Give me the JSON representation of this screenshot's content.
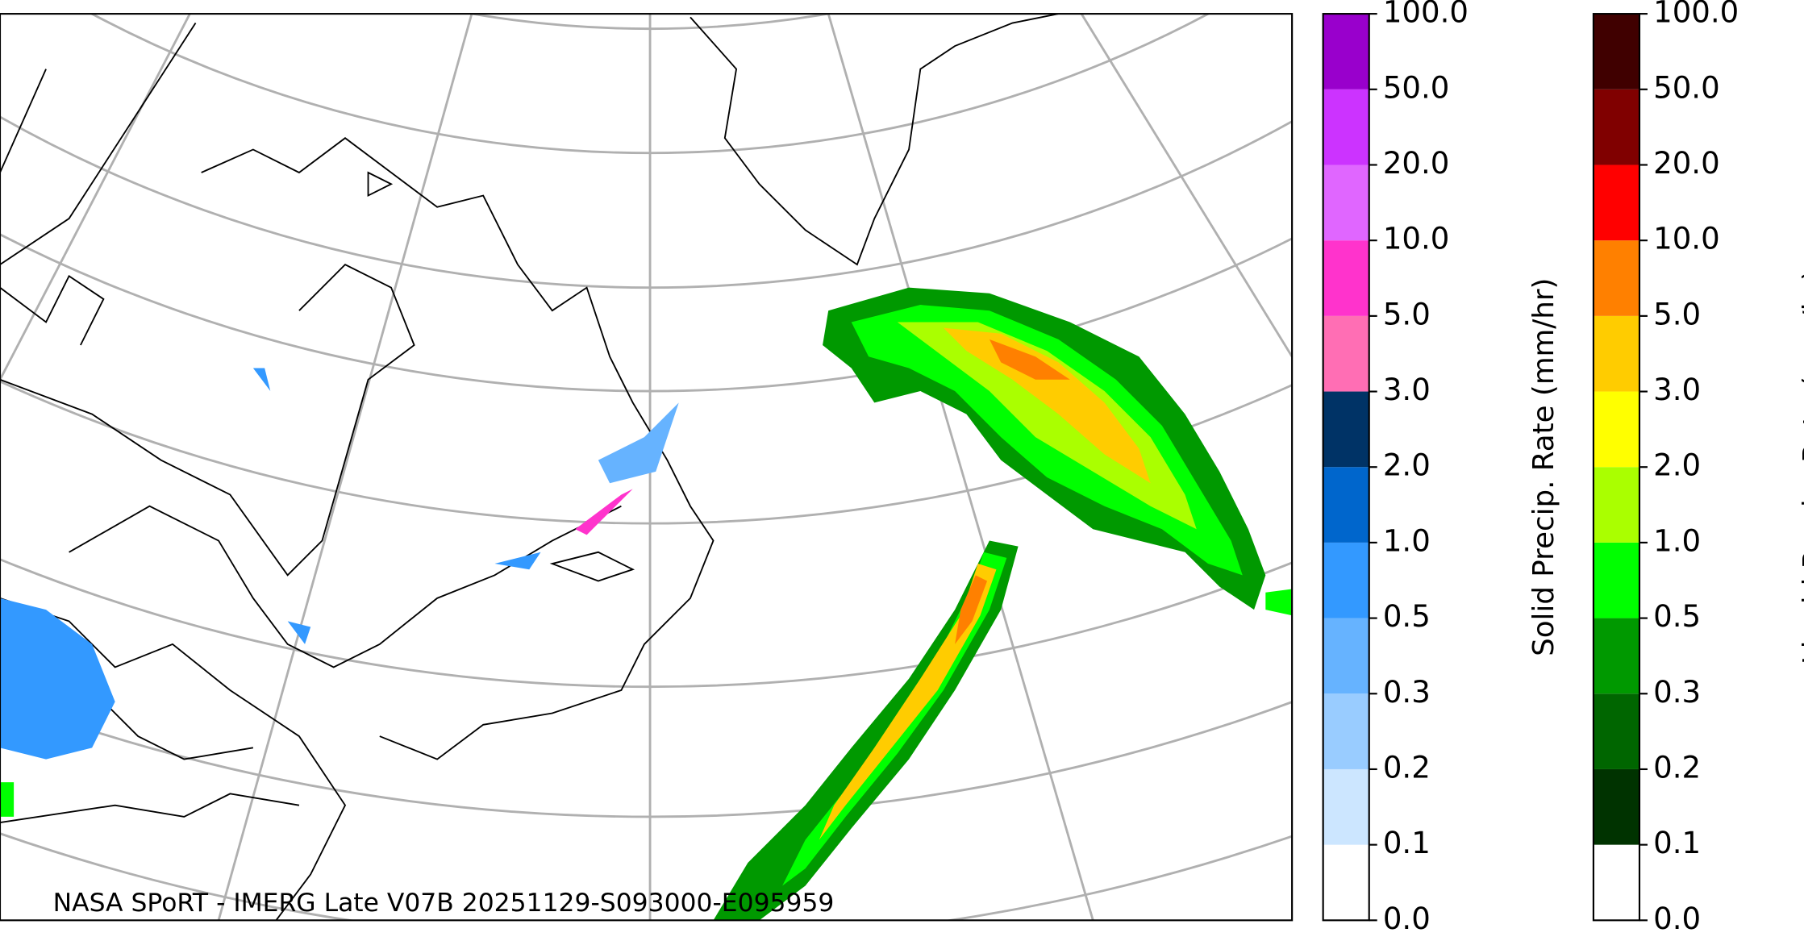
{
  "caption": "NASA SPoRT - IMERG Late V07B 20251129-S093000-E095959",
  "colorbars": [
    {
      "label": "Solid Precip. Rate (mm/hr)",
      "ticks": [
        "0.0",
        "0.1",
        "0.2",
        "0.3",
        "0.5",
        "1.0",
        "2.0",
        "3.0",
        "5.0",
        "10.0",
        "20.0",
        "50.0",
        "100.0"
      ],
      "colors": [
        "#ffffff",
        "#cce6ff",
        "#99ccff",
        "#66b3ff",
        "#3399ff",
        "#0066cc",
        "#003366",
        "#ff6eb4",
        "#ff33cc",
        "#e066ff",
        "#cc33ff",
        "#9900cc"
      ]
    },
    {
      "label": "Liquid Precip. Rate (mm/hr)",
      "ticks": [
        "0.0",
        "0.1",
        "0.2",
        "0.3",
        "0.5",
        "1.0",
        "2.0",
        "3.0",
        "5.0",
        "10.0",
        "20.0",
        "50.0",
        "100.0"
      ],
      "colors": [
        "#ffffff",
        "#003300",
        "#006600",
        "#009900",
        "#00ff00",
        "#aaff00",
        "#ffff00",
        "#ffcc00",
        "#ff8000",
        "#ff0000",
        "#800000",
        "#400000"
      ]
    }
  ]
}
